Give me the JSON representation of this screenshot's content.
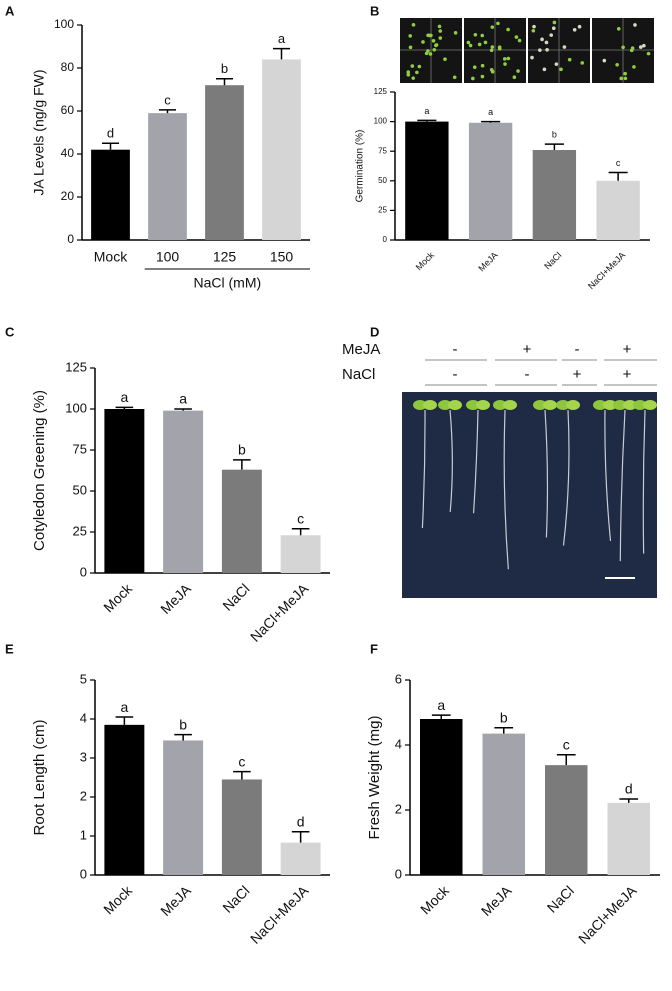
{
  "chart_data": [
    {
      "type": "bar",
      "panel": "A",
      "ylabel": "JA Levels (ng/g FW)",
      "categories": [
        "Mock",
        "100",
        "125",
        "150"
      ],
      "values": [
        42,
        59,
        72,
        84
      ],
      "errors": [
        3,
        1.5,
        3,
        5
      ],
      "letters": [
        "d",
        "c",
        "b",
        "a"
      ],
      "colors": [
        "#000000",
        "#a3a3ab",
        "#7b7b7b",
        "#d5d5d5"
      ],
      "group_label": "NaCl (mM)",
      "ylim": [
        0,
        100
      ],
      "yticks": [
        0,
        20,
        40,
        60,
        80,
        100
      ]
    },
    {
      "type": "bar",
      "panel": "B",
      "ylabel": "Germination (%)",
      "categories": [
        "Mock",
        "MeJA",
        "NaCl",
        "NaCl+MeJA"
      ],
      "values": [
        100,
        99,
        76,
        50
      ],
      "errors": [
        1,
        1,
        5,
        7
      ],
      "letters": [
        "a",
        "a",
        "b",
        "c"
      ],
      "colors": [
        "#000000",
        "#a3a3ab",
        "#7b7b7b",
        "#d5d5d5"
      ],
      "ylim": [
        0,
        125
      ],
      "yticks": [
        0,
        25,
        50,
        75,
        100,
        125
      ]
    },
    {
      "type": "bar",
      "panel": "C",
      "ylabel": "Cotyledon Greening (%)",
      "categories": [
        "Mock",
        "MeJA",
        "NaCl",
        "NaCl+MeJA"
      ],
      "values": [
        100,
        99,
        63,
        23
      ],
      "errors": [
        1,
        1,
        6,
        4
      ],
      "letters": [
        "a",
        "a",
        "b",
        "c"
      ],
      "colors": [
        "#000000",
        "#a3a3ab",
        "#7b7b7b",
        "#d5d5d5"
      ],
      "ylim": [
        0,
        125
      ],
      "yticks": [
        0,
        25,
        50,
        75,
        100,
        125
      ]
    },
    {
      "type": "image",
      "panel": "D",
      "rows": [
        {
          "label": "MeJA",
          "signs": [
            "-",
            "+",
            "-",
            "+"
          ]
        },
        {
          "label": "NaCl",
          "signs": [
            "-",
            "-",
            "+",
            "+"
          ]
        }
      ]
    },
    {
      "type": "bar",
      "panel": "E",
      "ylabel": "Root Length (cm)",
      "categories": [
        "Mock",
        "MeJA",
        "NaCl",
        "NaCl+MeJA"
      ],
      "values": [
        3.85,
        3.45,
        2.45,
        0.83
      ],
      "errors": [
        0.2,
        0.15,
        0.2,
        0.28
      ],
      "letters": [
        "a",
        "b",
        "c",
        "d"
      ],
      "colors": [
        "#000000",
        "#a3a3ab",
        "#7b7b7b",
        "#d5d5d5"
      ],
      "ylim": [
        0,
        5
      ],
      "yticks": [
        0,
        1,
        2,
        3,
        4,
        5
      ]
    },
    {
      "type": "bar",
      "panel": "F",
      "ylabel": "Fresh Weight (mg)",
      "categories": [
        "Mock",
        "MeJA",
        "NaCl",
        "NaCl+MeJA"
      ],
      "values": [
        4.8,
        4.35,
        3.38,
        2.22
      ],
      "errors": [
        0.12,
        0.18,
        0.32,
        0.12
      ],
      "letters": [
        "a",
        "b",
        "c",
        "d"
      ],
      "colors": [
        "#000000",
        "#a3a3ab",
        "#7b7b7b",
        "#d5d5d5"
      ],
      "ylim": [
        0,
        6
      ],
      "yticks": [
        0,
        2,
        4,
        6
      ]
    }
  ]
}
